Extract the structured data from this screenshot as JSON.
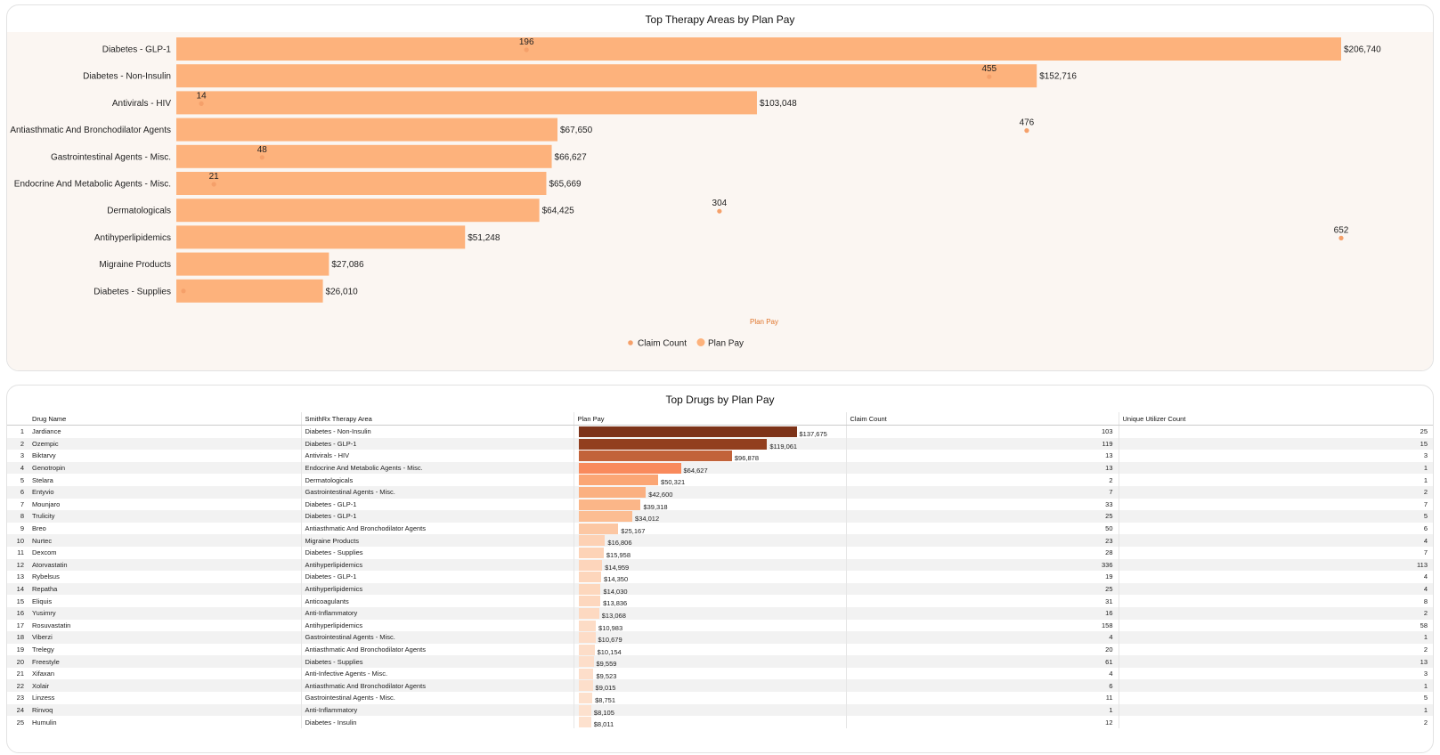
{
  "chart_data": [
    {
      "type": "bar",
      "orientation": "horizontal",
      "title": "Top Therapy Areas by Plan Pay",
      "xlabel": "Plan Pay",
      "categories": [
        "Diabetes - GLP-1",
        "Diabetes - Non-Insulin",
        "Antivirals - HIV",
        "Antiasthmatic And Bronchodilator Agents",
        "Gastrointestinal Agents - Misc.",
        "Endocrine And Metabolic Agents - Misc.",
        "Dermatologicals",
        "Antihyperlipidemics",
        "Migraine Products",
        "Diabetes - Supplies"
      ],
      "series": [
        {
          "name": "Plan Pay",
          "values": [
            206740,
            152716,
            103048,
            67650,
            66627,
            65669,
            64425,
            51248,
            27086,
            26010
          ],
          "labels": [
            "$206,740",
            "$152,716",
            "$103,048",
            "$67,650",
            "$66,627",
            "$65,669",
            "$64,425",
            "$51,248",
            "$27,086",
            "$26,010"
          ]
        },
        {
          "name": "Claim Count",
          "values": [
            196,
            455,
            14,
            476,
            48,
            21,
            304,
            652,
            null,
            null
          ],
          "labels": [
            "196",
            "455",
            "14",
            "476",
            "48",
            "21",
            "304",
            "652",
            "",
            ""
          ]
        }
      ],
      "xlim": [
        0,
        206740
      ],
      "claim_xlim": [
        0,
        652
      ],
      "legend": [
        "Claim Count",
        "Plan Pay"
      ],
      "legend_position": "bottom",
      "colors": {
        "bar": "#fdb27c",
        "dot": "#f5a06a"
      }
    }
  ],
  "table": {
    "title": "Top Drugs by Plan Pay",
    "columns": [
      "",
      "Drug Name",
      "SmithRx Therapy Area",
      "Plan Pay",
      "Claim Count",
      "Unique Utilizer Count"
    ],
    "plan_pay_max": 137675,
    "rows": [
      {
        "n": "1",
        "drug": "Jardiance",
        "area": "Diabetes - Non-Insulin",
        "pay": 137675,
        "pay_label": "$137,675",
        "claims": "103",
        "users": "25",
        "color": "#7d3319"
      },
      {
        "n": "2",
        "drug": "Ozempic",
        "area": "Diabetes - GLP-1",
        "pay": 119061,
        "pay_label": "$119,061",
        "claims": "119",
        "users": "15",
        "color": "#923f1f"
      },
      {
        "n": "3",
        "drug": "Biktarvy",
        "area": "Antivirals - HIV",
        "pay": 96878,
        "pay_label": "$96,878",
        "claims": "13",
        "users": "3",
        "color": "#c2633a"
      },
      {
        "n": "4",
        "drug": "Genotropin",
        "area": "Endocrine And Metabolic Agents - Misc.",
        "pay": 64627,
        "pay_label": "$64,627",
        "claims": "13",
        "users": "1",
        "color": "#f98a5c"
      },
      {
        "n": "5",
        "drug": "Stelara",
        "area": "Dermatologicals",
        "pay": 50321,
        "pay_label": "$50,321",
        "claims": "2",
        "users": "1",
        "color": "#fba675"
      },
      {
        "n": "6",
        "drug": "Entyvio",
        "area": "Gastrointestinal Agents - Misc.",
        "pay": 42600,
        "pay_label": "$42,600",
        "claims": "7",
        "users": "2",
        "color": "#fbb081"
      },
      {
        "n": "7",
        "drug": "Mounjaro",
        "area": "Diabetes - GLP-1",
        "pay": 39318,
        "pay_label": "$39,318",
        "claims": "33",
        "users": "7",
        "color": "#fbb688"
      },
      {
        "n": "8",
        "drug": "Trulicity",
        "area": "Diabetes - GLP-1",
        "pay": 34012,
        "pay_label": "$34,012",
        "claims": "25",
        "users": "5",
        "color": "#fcbd92"
      },
      {
        "n": "9",
        "drug": "Breo",
        "area": "Antiasthmatic And Bronchodilator Agents",
        "pay": 25167,
        "pay_label": "$25,167",
        "claims": "50",
        "users": "6",
        "color": "#fcc7a3"
      },
      {
        "n": "10",
        "drug": "Nurtec",
        "area": "Migraine Products",
        "pay": 16806,
        "pay_label": "$16,806",
        "claims": "23",
        "users": "4",
        "color": "#fdd1b4"
      },
      {
        "n": "11",
        "drug": "Dexcom",
        "area": "Diabetes - Supplies",
        "pay": 15958,
        "pay_label": "$15,958",
        "claims": "28",
        "users": "7",
        "color": "#fdd3b7"
      },
      {
        "n": "12",
        "drug": "Atorvastatin",
        "area": "Antihyperlipidemics",
        "pay": 14959,
        "pay_label": "$14,959",
        "claims": "336",
        "users": "113",
        "color": "#fdd5bb"
      },
      {
        "n": "13",
        "drug": "Rybelsus",
        "area": "Diabetes - GLP-1",
        "pay": 14350,
        "pay_label": "$14,350",
        "claims": "19",
        "users": "4",
        "color": "#fdd6bc"
      },
      {
        "n": "14",
        "drug": "Repatha",
        "area": "Antihyperlipidemics",
        "pay": 14030,
        "pay_label": "$14,030",
        "claims": "25",
        "users": "4",
        "color": "#fdd7bd"
      },
      {
        "n": "15",
        "drug": "Eliquis",
        "area": "Anticoagulants",
        "pay": 13836,
        "pay_label": "$13,836",
        "claims": "31",
        "users": "8",
        "color": "#fdd7be"
      },
      {
        "n": "16",
        "drug": "Yusimry",
        "area": "Anti-Inflammatory",
        "pay": 13068,
        "pay_label": "$13,068",
        "claims": "16",
        "users": "2",
        "color": "#fdd9c1"
      },
      {
        "n": "17",
        "drug": "Rosuvastatin",
        "area": "Antihyperlipidemics",
        "pay": 10983,
        "pay_label": "$10,983",
        "claims": "158",
        "users": "58",
        "color": "#fddcc6"
      },
      {
        "n": "18",
        "drug": "Viberzi",
        "area": "Gastrointestinal Agents - Misc.",
        "pay": 10679,
        "pay_label": "$10,679",
        "claims": "4",
        "users": "1",
        "color": "#fddcc7"
      },
      {
        "n": "19",
        "drug": "Trelegy",
        "area": "Antiasthmatic And Bronchodilator Agents",
        "pay": 10154,
        "pay_label": "$10,154",
        "claims": "20",
        "users": "2",
        "color": "#fdddc8"
      },
      {
        "n": "20",
        "drug": "Freestyle",
        "area": "Diabetes - Supplies",
        "pay": 9559,
        "pay_label": "$9,559",
        "claims": "61",
        "users": "13",
        "color": "#fddeca"
      },
      {
        "n": "21",
        "drug": "Xifaxan",
        "area": "Anti-Infective Agents - Misc.",
        "pay": 9523,
        "pay_label": "$9,523",
        "claims": "4",
        "users": "3",
        "color": "#fddeca"
      },
      {
        "n": "22",
        "drug": "Xolair",
        "area": "Antiasthmatic And Bronchodilator Agents",
        "pay": 9015,
        "pay_label": "$9,015",
        "claims": "6",
        "users": "1",
        "color": "#fddfcb"
      },
      {
        "n": "23",
        "drug": "Linzess",
        "area": "Gastrointestinal Agents - Misc.",
        "pay": 8751,
        "pay_label": "$8,751",
        "claims": "11",
        "users": "5",
        "color": "#fde0cc"
      },
      {
        "n": "24",
        "drug": "Rinvoq",
        "area": "Anti-Inflammatory",
        "pay": 8105,
        "pay_label": "$8,105",
        "claims": "1",
        "users": "1",
        "color": "#fde1ce"
      },
      {
        "n": "25",
        "drug": "Humulin",
        "area": "Diabetes - Insulin",
        "pay": 8011,
        "pay_label": "$8,011",
        "claims": "12",
        "users": "2",
        "color": "#fde1ce"
      }
    ]
  }
}
